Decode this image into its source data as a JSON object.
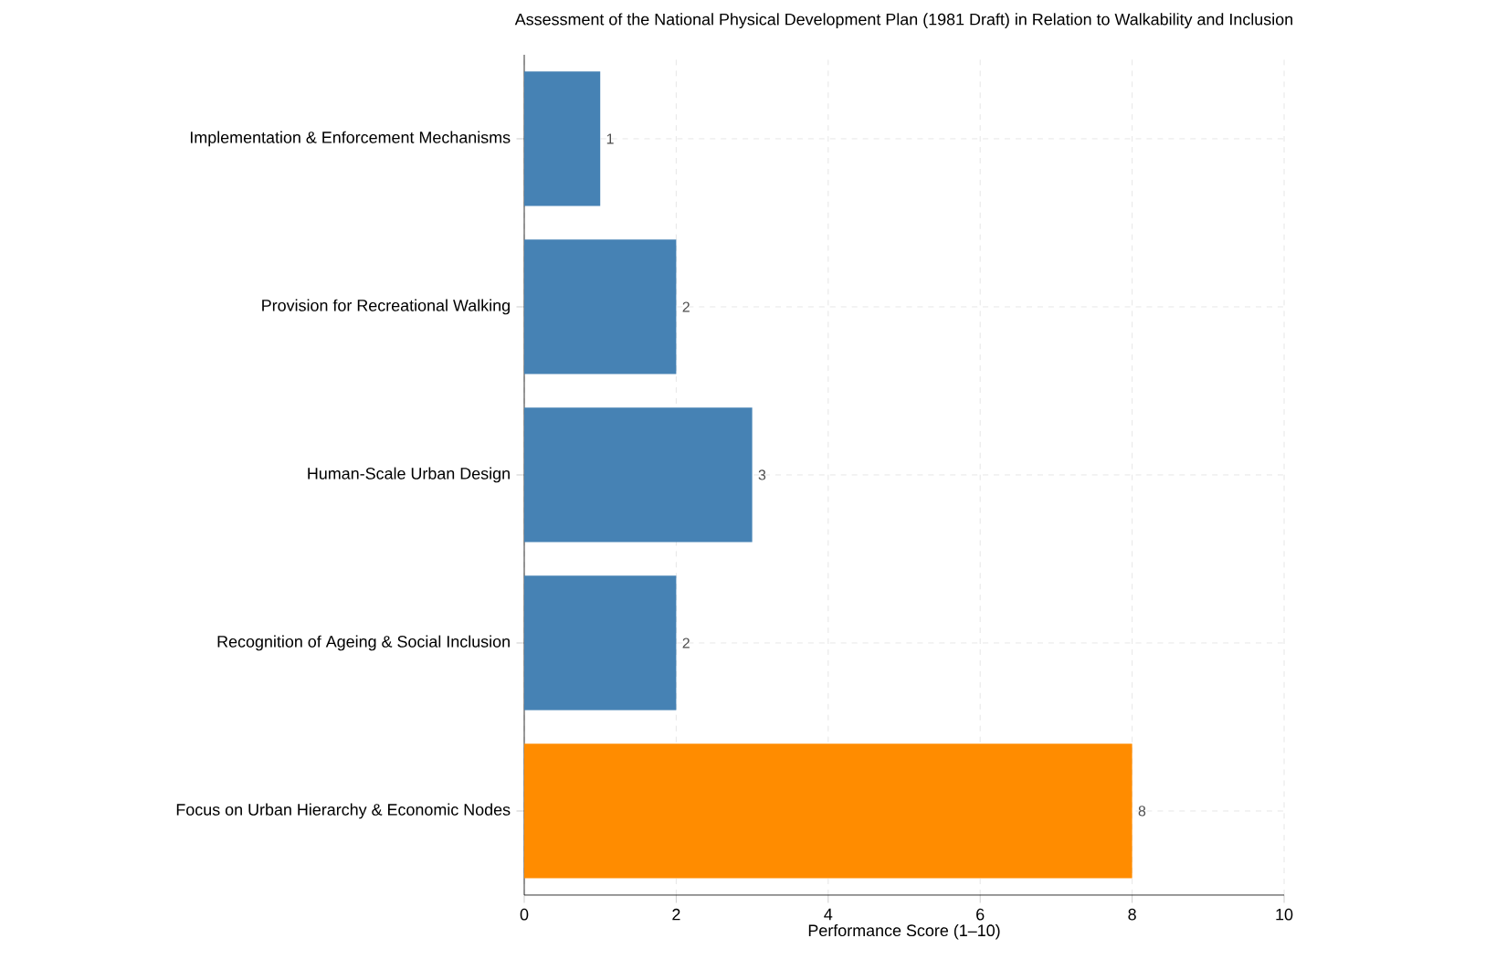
{
  "chart_data": {
    "type": "bar",
    "orientation": "horizontal",
    "title": "Assessment of the National Physical Development Plan (1981 Draft) in Relation to Walkability and Inclusion",
    "xlabel": "Performance Score (1–10)",
    "categories": [
      "Implementation & Enforcement Mechanisms",
      "Provision for Recreational Walking",
      "Human-Scale Urban Design",
      "Recognition of Ageing & Social Inclusion",
      "Focus on Urban Hierarchy & Economic Nodes"
    ],
    "values": [
      1,
      2,
      3,
      2,
      8
    ],
    "colors": [
      "#4682b4",
      "#4682b4",
      "#4682b4",
      "#4682b4",
      "#ff8c00"
    ],
    "xlim": [
      0,
      10
    ],
    "xticks": [
      0,
      2,
      4,
      6,
      8,
      10
    ],
    "grid": true,
    "data_labels": true
  }
}
